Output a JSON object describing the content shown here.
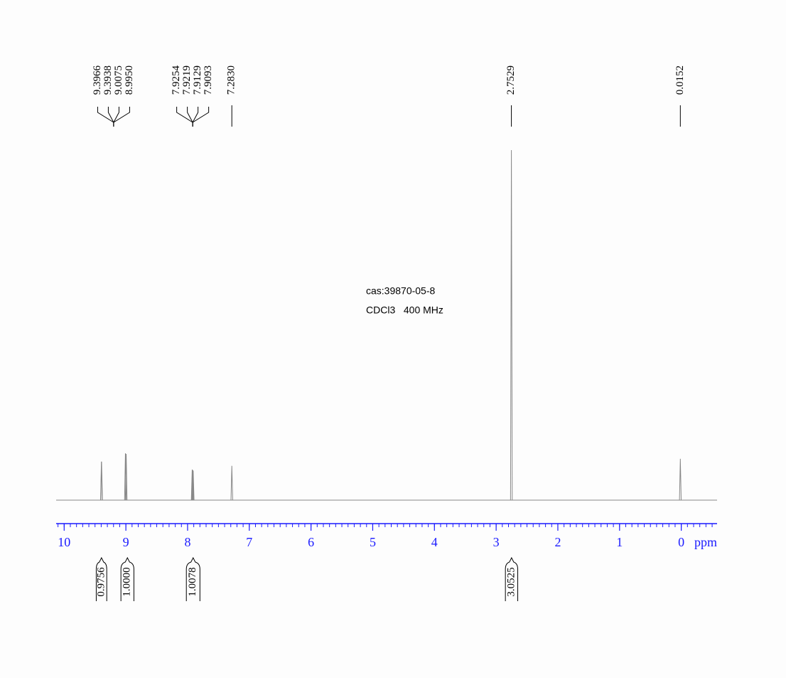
{
  "chart_data": {
    "type": "nmr",
    "annotations": [
      "cas:39870-05-8",
      "CDCl3   400 MHz"
    ],
    "xlabel": "ppm",
    "xlim": [
      10.13,
      -0.58
    ],
    "xticks": [
      10,
      9,
      8,
      7,
      6,
      5,
      4,
      3,
      2,
      1,
      0
    ],
    "ylim": [
      0,
      100
    ],
    "color": "#888888",
    "axis_color": "#1a1aff",
    "x": [
      {
        "value": 9.3966,
        "label": "9.3966"
      },
      {
        "value": 9.3938,
        "label": "9.3938"
      },
      {
        "value": 9.0075,
        "label": "9.0075"
      },
      {
        "value": 8.995,
        "label": "8.9950"
      },
      {
        "value": 7.9254,
        "label": "7.9254"
      },
      {
        "value": 7.9219,
        "label": "7.9219"
      },
      {
        "value": 7.9129,
        "label": "7.9129"
      },
      {
        "value": 7.9093,
        "label": "7.9093"
      },
      {
        "value": 7.283,
        "label": "7.2830"
      },
      {
        "value": 2.7529,
        "label": "2.7529"
      },
      {
        "value": 0.0152,
        "label": "0.0152"
      }
    ],
    "values": [
      11,
      11,
      13.4,
      13.2,
      8.7,
      8.7,
      8.5,
      8.4,
      9.8,
      100,
      11.8
    ],
    "integrals": [
      {
        "value": 0.9756,
        "label": "0.9756",
        "from": 9.48,
        "to": 9.31
      },
      {
        "value": 1,
        "label": "1.0000",
        "from": 9.08,
        "to": 8.87
      },
      {
        "value": 1.0078,
        "label": "1.0078",
        "from": 8.02,
        "to": 7.8
      },
      {
        "value": 3.0525,
        "label": "3.0525",
        "from": 2.85,
        "to": 2.65
      }
    ]
  }
}
